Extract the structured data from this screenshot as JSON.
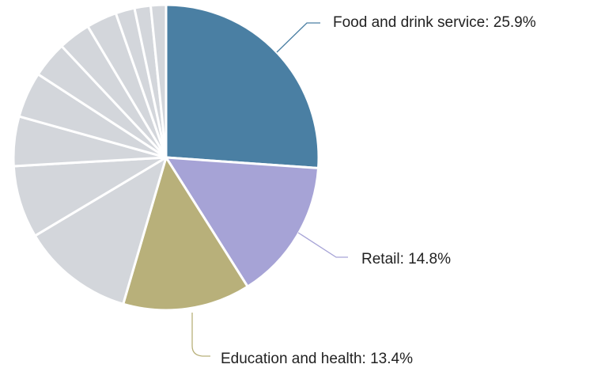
{
  "chart_data": {
    "type": "pie",
    "title": "",
    "start": "12 o'clock",
    "direction": "clockwise",
    "slices": [
      {
        "label": "Food and drink service: 25.9%",
        "value": 25.9,
        "color": "#4a7fa3",
        "labeled": true
      },
      {
        "label": "Retail: 14.8%",
        "value": 14.8,
        "color": "#a6a3d6",
        "labeled": true
      },
      {
        "label": "Education and health: 13.4%",
        "value": 13.4,
        "color": "#b8b07a",
        "labeled": true
      },
      {
        "value": 11.8,
        "color": "#d3d6db",
        "labeled": false
      },
      {
        "value": 7.6,
        "color": "#d3d6db",
        "labeled": false
      },
      {
        "value": 5.2,
        "color": "#d3d6db",
        "labeled": false
      },
      {
        "value": 4.8,
        "color": "#d3d6db",
        "labeled": false
      },
      {
        "value": 3.8,
        "color": "#d3d6db",
        "labeled": false
      },
      {
        "value": 3.4,
        "color": "#d3d6db",
        "labeled": false
      },
      {
        "value": 3.2,
        "color": "#d3d6db",
        "labeled": false
      },
      {
        "value": 2.0,
        "color": "#d3d6db",
        "labeled": false
      },
      {
        "value": 1.7,
        "color": "#d3d6db",
        "labeled": false
      },
      {
        "value": 1.6,
        "color": "#d3d6db",
        "labeled": false
      }
    ]
  }
}
